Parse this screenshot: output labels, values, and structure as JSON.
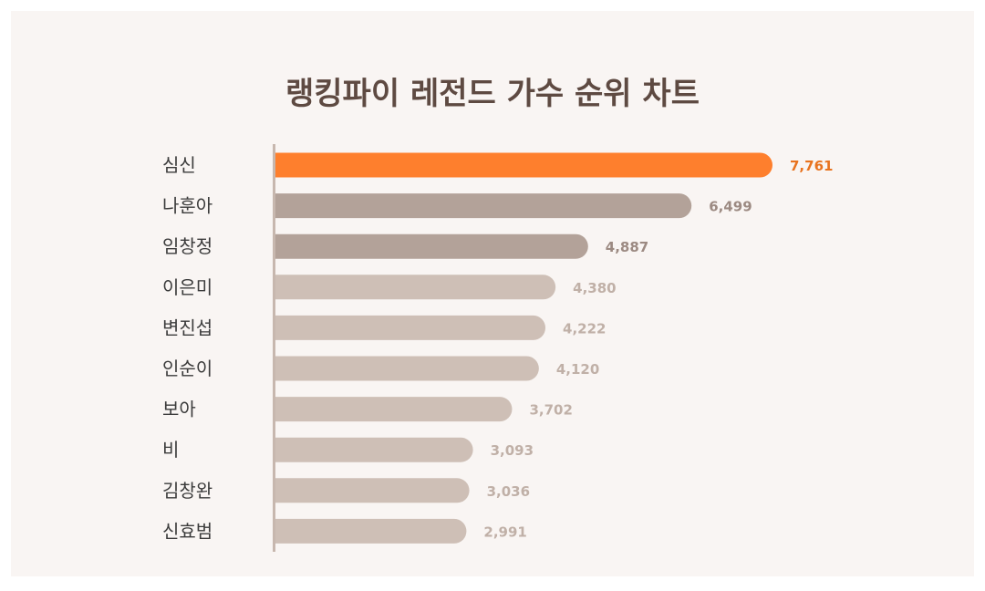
{
  "chart_data": {
    "type": "bar",
    "orientation": "horizontal",
    "title": "랭킹파이 레전드 가수 순위 차트",
    "categories": [
      "심신",
      "나훈아",
      "임창정",
      "이은미",
      "변진섭",
      "인순이",
      "보아",
      "비",
      "김창완",
      "신효범"
    ],
    "values": [
      7761,
      6499,
      4887,
      4380,
      4222,
      4120,
      3702,
      3093,
      3036,
      2991
    ],
    "value_labels": [
      "7,761",
      "6,499",
      "4,887",
      "4,380",
      "4,222",
      "4,120",
      "3,702",
      "3,093",
      "3,036",
      "2,991"
    ],
    "xlim": [
      0,
      7761
    ],
    "grid": false,
    "legend": "none"
  },
  "colors": {
    "background": "#f9f5f3",
    "title": "#5e4a42",
    "category_label": "#3b3b3b",
    "axis_line": "#c7b7ae",
    "rank1_bar": "#fe7f2d",
    "rank1_label": "#e8731f",
    "top_bar": "#b3a299",
    "top_label": "#9c8a82",
    "other_bar": "#cebfb6",
    "other_label": "#c0b0a7"
  }
}
